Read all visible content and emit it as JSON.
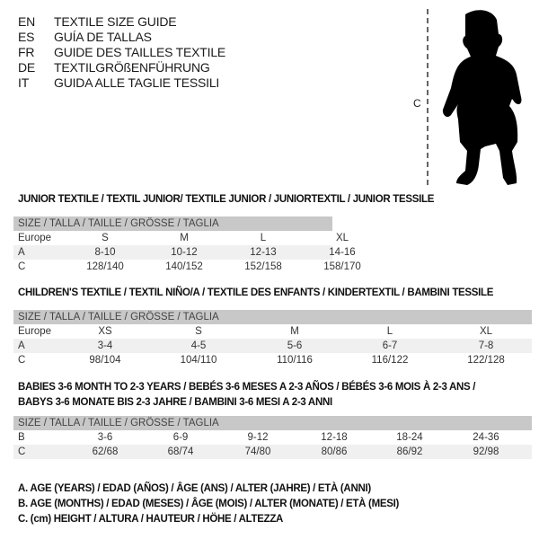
{
  "languages": [
    {
      "code": "EN",
      "title": "TEXTILE SIZE GUIDE"
    },
    {
      "code": "ES",
      "title": "GUÍA DE TALLAS"
    },
    {
      "code": "FR",
      "title": "GUIDE DES TAILLES TEXTILE"
    },
    {
      "code": "DE",
      "title": "TEXTILGRÖßENFÜHRUNG"
    },
    {
      "code": "IT",
      "title": "GUIDA ALLE TAGLIE TESSILI"
    }
  ],
  "figure": {
    "measure_label": "C",
    "icon": "baby-silhouette"
  },
  "colors": {
    "header_bg": "#c8c8c8",
    "shaded_row": "#f0f0f0"
  },
  "junior": {
    "title": "JUNIOR TEXTILE / TEXTIL JUNIOR/ TEXTILE JUNIOR / JUNIORTEXTIL / JUNIOR TESSILE",
    "header": "SIZE / TALLA / TAILLE / GRÖSSE / TAGLIA",
    "rows": [
      {
        "label": "Europe",
        "values": [
          "S",
          "M",
          "L",
          "XL"
        ]
      },
      {
        "label": "A",
        "values": [
          "8-10",
          "10-12",
          "12-13",
          "14-16"
        ]
      },
      {
        "label": "C",
        "values": [
          "128/140",
          "140/152",
          "152/158",
          "158/170"
        ]
      }
    ]
  },
  "children": {
    "title": "CHILDREN'S TEXTILE / TEXTIL NIÑO/A / TEXTILE DES ENFANTS / KINDERTEXTIL / BAMBINI TESSILE",
    "header": "SIZE / TALLA / TAILLE / GRÖSSE / TAGLIA",
    "rows": [
      {
        "label": "Europe",
        "values": [
          "XS",
          "S",
          "M",
          "L",
          "XL"
        ]
      },
      {
        "label": "A",
        "values": [
          "3-4",
          "4-5",
          "5-6",
          "6-7",
          "7-8"
        ]
      },
      {
        "label": "C",
        "values": [
          "98/104",
          "104/110",
          "110/116",
          "116/122",
          "122/128"
        ]
      }
    ]
  },
  "babies": {
    "title_line1": "BABIES 3-6 MONTH TO 2-3 YEARS / BEBÉS 3-6 MESES A 2-3 AÑOS / BÉBÉS 3-6 MOIS À 2-3 ANS /",
    "title_line2": "BABYS 3-6 MONATE BIS 2-3 JAHRE / BAMBINI 3-6 MESI A 2-3 ANNI",
    "header": "SIZE / TALLA / TAILLE / GRÖSSE / TAGLIA",
    "rows": [
      {
        "label": "B",
        "values": [
          "3-6",
          "6-9",
          "9-12",
          "12-18",
          "18-24",
          "24-36"
        ]
      },
      {
        "label": "C",
        "values": [
          "62/68",
          "68/74",
          "74/80",
          "80/86",
          "86/92",
          "92/98"
        ]
      }
    ]
  },
  "legend": [
    "A. AGE (YEARS) / EDAD (AÑOS) / ÂGE (ANS) / ALTER (JAHRE) / ETÀ (ANNI)",
    "B. AGE (MONTHS) / EDAD (MESES) / ÂGE (MOIS) / ALTER (MONATE) / ETÀ (MESI)",
    "C. (cm) HEIGHT / ALTURA / HAUTEUR / HÖHE / ALTEZZA"
  ]
}
